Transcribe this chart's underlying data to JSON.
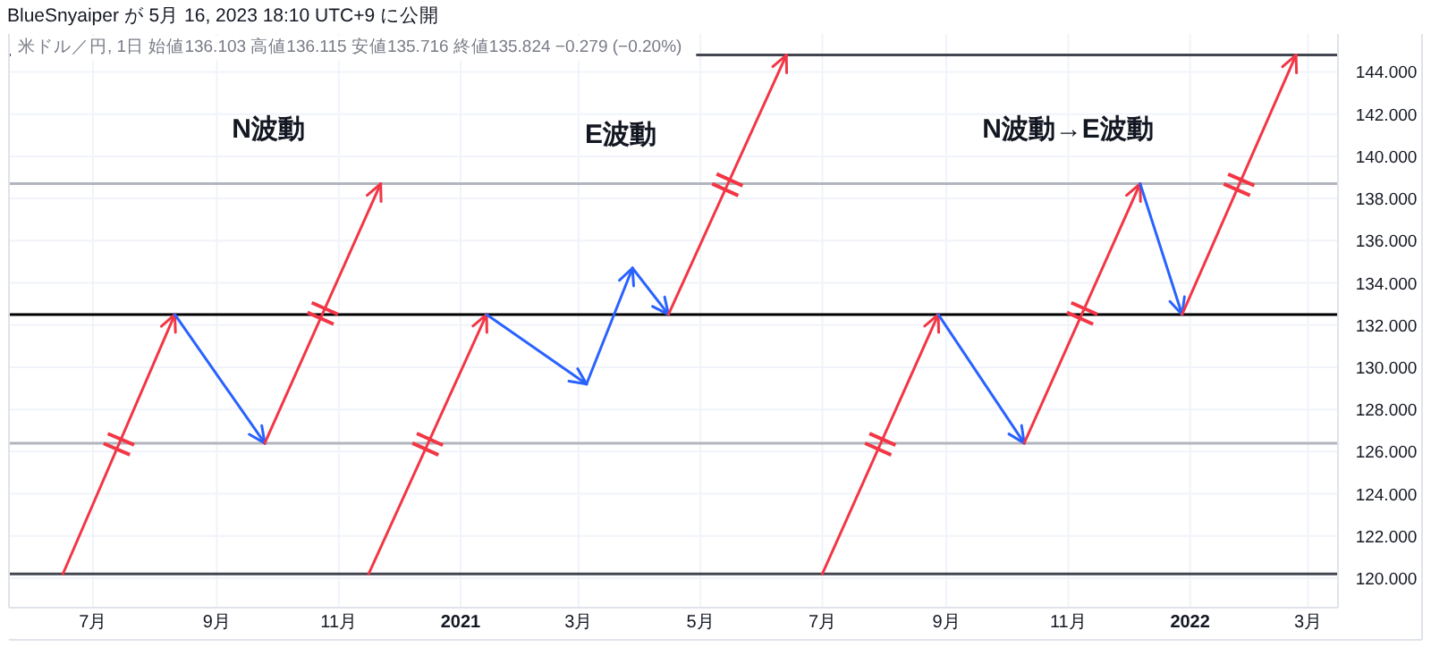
{
  "chart_data": {
    "type": "line",
    "title": "BlueSnyaiper が 5月 16, 2023 18:10 UTC+9 に公開",
    "subtitle": "米ドル／円, 1日 始値136.103 高値136.115 安値135.716 終値135.824 −0.279 (−0.20%)",
    "series": [
      {
        "color": "#f23645",
        "x": [
          "2020-06-16",
          "2020-08-11"
        ],
        "values": [
          120.2,
          132.5
        ]
      },
      {
        "color": "#2962ff",
        "x": [
          "2020-08-11",
          "2020-09-25"
        ],
        "values": [
          132.5,
          126.4
        ]
      },
      {
        "color": "#f23645",
        "x": [
          "2020-09-25",
          "2020-11-22"
        ],
        "values": [
          126.4,
          138.7
        ]
      },
      {
        "color": "#f23645",
        "x": [
          "2020-11-16",
          "2021-01-14"
        ],
        "values": [
          120.2,
          132.5
        ]
      },
      {
        "color": "#2962ff",
        "x": [
          "2021-01-14",
          "2021-03-05"
        ],
        "values": [
          132.5,
          129.2
        ]
      },
      {
        "color": "#2962ff",
        "x": [
          "2021-03-05",
          "2021-03-28"
        ],
        "values": [
          129.2,
          134.7
        ]
      },
      {
        "color": "#2962ff",
        "x": [
          "2021-03-28",
          "2021-04-15"
        ],
        "values": [
          134.7,
          132.5
        ]
      },
      {
        "color": "#f23645",
        "x": [
          "2021-04-15",
          "2021-06-13"
        ],
        "values": [
          132.5,
          144.8
        ]
      },
      {
        "color": "#f23645",
        "x": [
          "2021-07-01",
          "2021-08-28"
        ],
        "values": [
          120.2,
          132.5
        ]
      },
      {
        "color": "#2962ff",
        "x": [
          "2021-08-28",
          "2021-10-10"
        ],
        "values": [
          132.5,
          126.4
        ]
      },
      {
        "color": "#f23645",
        "x": [
          "2021-10-10",
          "2021-12-07"
        ],
        "values": [
          126.4,
          138.7
        ]
      },
      {
        "color": "#2962ff",
        "x": [
          "2021-12-07",
          "2021-12-28"
        ],
        "values": [
          138.7,
          132.5
        ]
      },
      {
        "color": "#f23645",
        "x": [
          "2021-12-28",
          "2022-02-23"
        ],
        "values": [
          132.5,
          144.8
        ]
      }
    ],
    "annotations": [
      "N波動",
      "E波動",
      "N波動→E波動"
    ],
    "ref_lines": [
      {
        "axis": "y",
        "value": 120.2,
        "color": "#434651"
      },
      {
        "axis": "y",
        "value": 126.4,
        "color": "#b2b5be"
      },
      {
        "axis": "y",
        "value": 132.5,
        "color": "#000000"
      },
      {
        "axis": "y",
        "value": 138.7,
        "color": "#b2b5be"
      },
      {
        "axis": "y",
        "value": 144.8,
        "color": "#434651"
      }
    ],
    "xlim": [
      "2020-05-20",
      "2022-03-16"
    ],
    "xticks": [
      {
        "value": "2020-07-01",
        "label": "7月"
      },
      {
        "value": "2020-09-01",
        "label": "9月"
      },
      {
        "value": "2020-11-01",
        "label": "11月"
      },
      {
        "value": "2021-01-01",
        "label": "2021"
      },
      {
        "value": "2021-03-01",
        "label": "3月"
      },
      {
        "value": "2021-05-01",
        "label": "5月"
      },
      {
        "value": "2021-07-01",
        "label": "7月"
      },
      {
        "value": "2021-09-01",
        "label": "9月"
      },
      {
        "value": "2021-11-01",
        "label": "11月"
      },
      {
        "value": "2022-01-01",
        "label": "2022"
      },
      {
        "value": "2022-03-01",
        "label": "3月"
      }
    ],
    "ylim": [
      118.6,
      145.8
    ],
    "yticks": [
      {
        "value": 120,
        "label": "120.000"
      },
      {
        "value": 122,
        "label": "122.000"
      },
      {
        "value": 124,
        "label": "124.000"
      },
      {
        "value": 126,
        "label": "126.000"
      },
      {
        "value": 128,
        "label": "128.000"
      },
      {
        "value": 130,
        "label": "130.000"
      },
      {
        "value": 132,
        "label": "132.000"
      },
      {
        "value": 134,
        "label": "134.000"
      },
      {
        "value": 136,
        "label": "136.000"
      },
      {
        "value": 138,
        "label": "138.000"
      },
      {
        "value": 140,
        "label": "140.000"
      },
      {
        "value": 142,
        "label": "142.000"
      },
      {
        "value": 144,
        "label": "144.000"
      }
    ],
    "grid": true
  }
}
